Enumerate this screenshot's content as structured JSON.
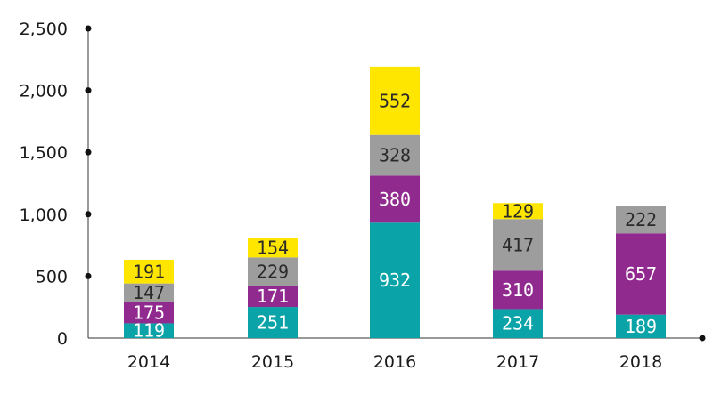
{
  "chart_data": {
    "type": "bar",
    "stacked": true,
    "categories": [
      "2014",
      "2015",
      "2016",
      "2017",
      "2018"
    ],
    "series": [
      {
        "color": "#0aa3a8",
        "label_color": "#ffffff",
        "values": [
          119,
          251,
          932,
          234,
          189
        ]
      },
      {
        "color": "#912a8f",
        "label_color": "#ffffff",
        "values": [
          175,
          171,
          380,
          310,
          657
        ]
      },
      {
        "color": "#9d9d9d",
        "label_color": "#2a2a2a",
        "values": [
          147,
          229,
          328,
          417,
          222
        ]
      },
      {
        "color": "#ffe600",
        "label_color": "#2a2a2a",
        "values": [
          191,
          154,
          552,
          129,
          null
        ]
      }
    ],
    "y_ticks": [
      {
        "value": 0,
        "label": "0"
      },
      {
        "value": 500,
        "label": "500"
      },
      {
        "value": 1000,
        "label": "1,000"
      },
      {
        "value": 1500,
        "label": "1,500"
      },
      {
        "value": 2000,
        "label": "2,000"
      },
      {
        "value": 2500,
        "label": "2,500"
      }
    ],
    "ylim": [
      0,
      2500
    ],
    "grid": false,
    "legend": "none",
    "title": "",
    "xlabel": "",
    "ylabel": ""
  }
}
